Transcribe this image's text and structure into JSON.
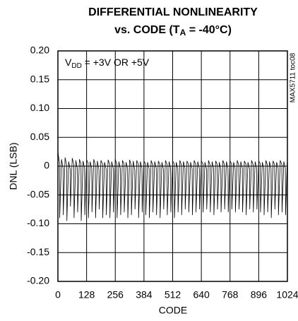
{
  "chart_data": {
    "type": "line",
    "title": "DIFFERENTIAL NONLINEARITY",
    "subtitle": [
      "vs. CODE (T",
      "A",
      " = -40°C)"
    ],
    "annotation": [
      "V",
      "DD",
      " = +3V OR +5V"
    ],
    "side_label": "MAX5711 toc08",
    "xlabel": "CODE",
    "ylabel": "DNL (LSB)",
    "xlim": [
      0,
      1024
    ],
    "xticks": [
      0,
      128,
      256,
      384,
      512,
      640,
      768,
      896,
      1024
    ],
    "ylim": [
      -0.2,
      0.2
    ],
    "yticks": [
      {
        "value": 0.2,
        "label": "0.20"
      },
      0.15,
      {
        "value": 0.1,
        "label": "0.10"
      },
      0.05,
      0,
      -0.05,
      {
        "value": -0.1,
        "label": "-0.10"
      },
      -0.15,
      {
        "value": -0.2,
        "label": "-0.20"
      }
    ],
    "grid": true,
    "series": [
      {
        "color": "#000000",
        "x": [
          0,
          7,
          8,
          16,
          23,
          24,
          32,
          39,
          40,
          48,
          55,
          56,
          64,
          71,
          72,
          80,
          87,
          88,
          96,
          103,
          104,
          112,
          119,
          120,
          128,
          135,
          136,
          144,
          151,
          152,
          160,
          167,
          168,
          176,
          183,
          184,
          192,
          199,
          200,
          208,
          215,
          216,
          224,
          231,
          232,
          240,
          247,
          248,
          256,
          263,
          264,
          272,
          279,
          280,
          288,
          295,
          296,
          304,
          311,
          312,
          320,
          327,
          328,
          336,
          343,
          344,
          352,
          359,
          360,
          368,
          375,
          376,
          384,
          391,
          392,
          400,
          407,
          408,
          416,
          423,
          424,
          432,
          439,
          440,
          448,
          455,
          456,
          464,
          471,
          472,
          480,
          487,
          488,
          496,
          503,
          504,
          512,
          519,
          520,
          528,
          535,
          536,
          544,
          551,
          552,
          560,
          567,
          568,
          576,
          583,
          584,
          592,
          599,
          600,
          608,
          615,
          616,
          624,
          631,
          632,
          640,
          647,
          648,
          656,
          663,
          664,
          672,
          679,
          680,
          688,
          695,
          696,
          704,
          711,
          712,
          720,
          727,
          728,
          736,
          743,
          744,
          752,
          759,
          760,
          768,
          775,
          776,
          784,
          791,
          792,
          800,
          807,
          808,
          816,
          823,
          824,
          832,
          839,
          840,
          848,
          855,
          856,
          864,
          871,
          872,
          880,
          887,
          888,
          896,
          903,
          904,
          912,
          919,
          920,
          928,
          935,
          936,
          944,
          951,
          952,
          960,
          967,
          968,
          976,
          983,
          984,
          992,
          999,
          1000,
          1008,
          1015,
          1016,
          1023
        ],
        "values": [
          0.025,
          0.006,
          -0.09,
          0.012,
          -0.004,
          -0.085,
          0.015,
          0.002,
          -0.095,
          0.008,
          -0.006,
          -0.07,
          0.014,
          0.003,
          -0.09,
          0.01,
          -0.005,
          -0.08,
          0.012,
          0.004,
          -0.095,
          0.009,
          -0.003,
          -0.085,
          0.011,
          0.005,
          -0.09,
          0.008,
          -0.004,
          -0.08,
          0.012,
          0.002,
          -0.09,
          0.009,
          -0.006,
          -0.075,
          0.01,
          0.004,
          -0.09,
          0.007,
          -0.005,
          -0.085,
          0.011,
          0.003,
          -0.09,
          0.008,
          -0.004,
          -0.08,
          0.012,
          0.003,
          -0.09,
          0.008,
          -0.005,
          -0.085,
          0.01,
          0.004,
          -0.08,
          0.007,
          -0.004,
          -0.09,
          0.011,
          0.002,
          -0.085,
          0.009,
          -0.006,
          -0.075,
          0.01,
          0.003,
          -0.09,
          0.008,
          -0.004,
          -0.08,
          0.009,
          0.004,
          -0.085,
          0.007,
          -0.005,
          -0.09,
          0.01,
          0.002,
          -0.08,
          0.008,
          -0.004,
          -0.085,
          0.009,
          0.003,
          -0.09,
          0.007,
          -0.006,
          -0.075,
          0.01,
          0.003,
          -0.085,
          0.008,
          -0.004,
          -0.08,
          0.009,
          0.004,
          -0.09,
          0.007,
          -0.005,
          -0.08,
          0.01,
          0.002,
          -0.085,
          0.008,
          -0.004,
          -0.075,
          0.009,
          0.003,
          -0.08,
          0.007,
          -0.005,
          -0.085,
          0.01,
          0.003,
          -0.08,
          0.008,
          -0.004,
          -0.075,
          0.009,
          0.004,
          -0.08,
          0.007,
          -0.005,
          -0.075,
          0.01,
          0.002,
          -0.08,
          0.008,
          -0.004,
          -0.085,
          0.009,
          0.003,
          -0.075,
          0.007,
          -0.006,
          -0.08,
          0.01,
          0.003,
          -0.075,
          0.008,
          -0.004,
          -0.08,
          0.009,
          0.004,
          -0.075,
          0.007,
          -0.005,
          -0.08,
          0.01,
          0.002,
          -0.075,
          0.008,
          -0.004,
          -0.08,
          0.009,
          0.003,
          -0.085,
          0.007,
          -0.005,
          -0.075,
          0.01,
          0.003,
          -0.08,
          0.008,
          -0.004,
          -0.075,
          0.009,
          0.004,
          -0.08,
          0.007,
          -0.005,
          -0.085,
          0.01,
          0.002,
          -0.08,
          0.008,
          -0.004,
          -0.09,
          0.009,
          0.003,
          -0.075,
          0.007,
          -0.005,
          -0.085,
          0.01,
          0.003,
          -0.08,
          0.008,
          -0.004,
          -0.085,
          0.006
        ]
      }
    ]
  }
}
